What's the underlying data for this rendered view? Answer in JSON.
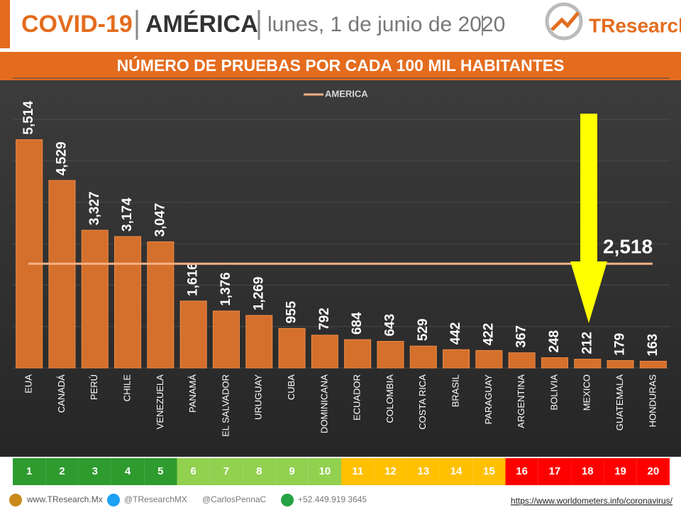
{
  "header": {
    "topic": "COVID-19",
    "region": "AMÉRICA",
    "date": "lunes, 1 de junio de 2020",
    "logo": "TResearch"
  },
  "chart_data": {
    "type": "bar",
    "title": "NÚMERO DE PRUEBAS POR CADA 100 MIL HABITANTES",
    "categories": [
      "EUA",
      "CANADÁ",
      "PERÚ",
      "CHILE",
      "VENEZUELA",
      "PANAMÁ",
      "EL SALVADOR",
      "URUGUAY",
      "CUBA",
      "DOMINICANA",
      "ECUADOR",
      "COLOMBIA",
      "COSTA RICA",
      "BRASIL",
      "PARAGUAY",
      "ARGENTINA",
      "BOLIVIA",
      "MEXICO",
      "GUATEMALA",
      "HONDURAS"
    ],
    "values": [
      5514,
      4529,
      3327,
      3174,
      3047,
      1616,
      1376,
      1269,
      955,
      792,
      684,
      643,
      529,
      442,
      422,
      367,
      248,
      212,
      179,
      163
    ],
    "value_labels": [
      "5,514",
      "4,529",
      "3,327",
      "3,174",
      "3,047",
      "1,616",
      "1,376",
      "1,269",
      "955",
      "792",
      "684",
      "643",
      "529",
      "442",
      "422",
      "367",
      "248",
      "212",
      "179",
      "163"
    ],
    "color": "#d4702c",
    "reference": {
      "name": "AMERICA",
      "value": 2518,
      "label": "2,518",
      "color": "#f4b183"
    },
    "ylim": [
      0,
      7000
    ],
    "yticks": [
      0,
      1000,
      2000,
      3000,
      4000,
      5000,
      6000,
      7000
    ],
    "grid": true,
    "ranks": [
      1,
      2,
      3,
      4,
      5,
      6,
      7,
      8,
      9,
      10,
      11,
      12,
      13,
      14,
      15,
      16,
      17,
      18,
      19,
      20
    ],
    "rank_colors": [
      "#2e9b2e",
      "#2e9b2e",
      "#2e9b2e",
      "#2e9b2e",
      "#2e9b2e",
      "#92d050",
      "#92d050",
      "#92d050",
      "#92d050",
      "#92d050",
      "#ffc000",
      "#ffc000",
      "#ffc000",
      "#ffc000",
      "#ffc000",
      "#ff0000",
      "#ff0000",
      "#ff0000",
      "#ff0000",
      "#ff0000"
    ]
  },
  "footer": {
    "site": "www.TResearch.Mx",
    "twitter": "@TResearchMX",
    "personal": "@CarlosPennaC",
    "phone": "+52.449.919 3645",
    "source": "https://www.worldometers.info/coronavirus/"
  }
}
